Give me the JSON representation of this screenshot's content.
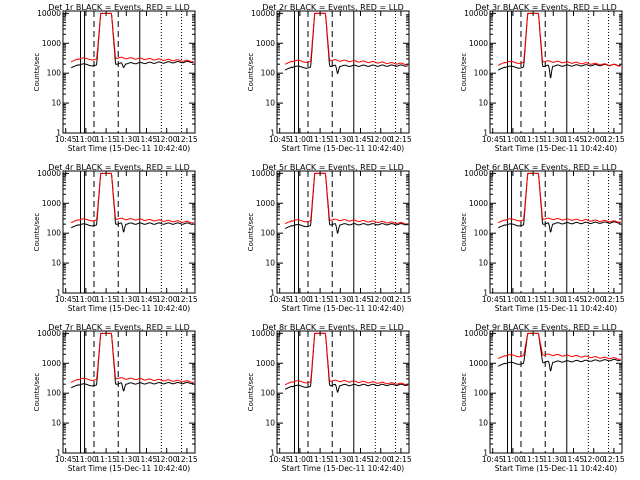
{
  "figure": {
    "xlabel": "Start Time (15-Dec-11 10:42:40)",
    "ylabel": "Counts/sec",
    "x_tick_labels": [
      "10:45",
      "11:00",
      "11:15",
      "11:30",
      "11:45",
      "12:00",
      "12:15"
    ],
    "y_tick_labels": [
      "1",
      "10",
      "100",
      "1000",
      "10000"
    ],
    "legend_text": "BLACK = Events, RED = LLD",
    "colors": {
      "events": "#000000",
      "lld": "#ff0000",
      "axes": "#000000"
    }
  },
  "chart_data": [
    {
      "type": "line",
      "title": "Det 1r BLACK = Events, RED = LLD",
      "xlabel": "Start Time (15-Dec-11 10:42:40)",
      "ylabel": "Counts/sec",
      "yscale": "log",
      "ylim": [
        1,
        12000
      ],
      "xlim": [
        "10:45",
        "12:20"
      ],
      "peak": 10000,
      "series": [
        {
          "name": "BLACK = Events",
          "base": 190,
          "peak": 10000,
          "dip": 150,
          "end": 240
        },
        {
          "name": "RED = LLD",
          "base": 300,
          "peak": 10000,
          "dip": 300,
          "end": 250
        }
      ]
    },
    {
      "type": "line",
      "title": "Det 2r BLACK = Events, RED = LLD",
      "xlabel": "Start Time (15-Dec-11 10:42:40)",
      "ylabel": "Counts/sec",
      "yscale": "log",
      "ylim": [
        1,
        12000
      ],
      "xlim": [
        "10:45",
        "12:20"
      ],
      "peak": 10000,
      "series": [
        {
          "name": "BLACK = Events",
          "base": 160,
          "peak": 10000,
          "dip": 90,
          "end": 180
        },
        {
          "name": "RED = LLD",
          "base": 250,
          "peak": 10000,
          "dip": 250,
          "end": 200
        }
      ]
    },
    {
      "type": "line",
      "title": "Det 3r BLACK = Events, RED = LLD",
      "xlabel": "Start Time (15-Dec-11 10:42:40)",
      "ylabel": "Counts/sec",
      "yscale": "log",
      "ylim": [
        1,
        12000
      ],
      "xlim": [
        "10:45",
        "12:20"
      ],
      "peak": 10000,
      "series": [
        {
          "name": "BLACK = Events",
          "base": 160,
          "peak": 10000,
          "dip": 60,
          "end": 190
        },
        {
          "name": "RED = LLD",
          "base": 230,
          "peak": 10000,
          "dip": 230,
          "end": 180
        }
      ]
    },
    {
      "type": "line",
      "title": "Det 4r BLACK = Events, RED = LLD",
      "xlabel": "Start Time (15-Dec-11 10:42:40)",
      "ylabel": "Counts/sec",
      "yscale": "log",
      "ylim": [
        1,
        12000
      ],
      "xlim": [
        "10:45",
        "12:20"
      ],
      "peak": 10000,
      "series": [
        {
          "name": "BLACK = Events",
          "base": 190,
          "peak": 10000,
          "dip": 100,
          "end": 210
        },
        {
          "name": "RED = LLD",
          "base": 280,
          "peak": 10000,
          "dip": 280,
          "end": 230
        }
      ]
    },
    {
      "type": "line",
      "title": "Det 5r BLACK = Events, RED = LLD",
      "xlabel": "Start Time (15-Dec-11 10:42:40)",
      "ylabel": "Counts/sec",
      "yscale": "log",
      "ylim": [
        1,
        12000
      ],
      "xlim": [
        "10:45",
        "12:20"
      ],
      "peak": 10000,
      "series": [
        {
          "name": "BLACK = Events",
          "base": 180,
          "peak": 10000,
          "dip": 90,
          "end": 200
        },
        {
          "name": "RED = LLD",
          "base": 260,
          "peak": 10000,
          "dip": 260,
          "end": 210
        }
      ]
    },
    {
      "type": "line",
      "title": "Det 6r BLACK = Events, RED = LLD",
      "xlabel": "Start Time (15-Dec-11 10:42:40)",
      "ylabel": "Counts/sec",
      "yscale": "log",
      "ylim": [
        1,
        12000
      ],
      "xlim": [
        "10:45",
        "12:20"
      ],
      "peak": 10000,
      "series": [
        {
          "name": "BLACK = Events",
          "base": 190,
          "peak": 10000,
          "dip": 100,
          "end": 230
        },
        {
          "name": "RED = LLD",
          "base": 280,
          "peak": 10000,
          "dip": 280,
          "end": 240
        }
      ]
    },
    {
      "type": "line",
      "title": "Det 7r BLACK = Events, RED = LLD",
      "xlabel": "Start Time (15-Dec-11 10:42:40)",
      "ylabel": "Counts/sec",
      "yscale": "log",
      "ylim": [
        1,
        12000
      ],
      "xlim": [
        "10:45",
        "12:20"
      ],
      "peak": 10000,
      "series": [
        {
          "name": "BLACK = Events",
          "base": 190,
          "peak": 10000,
          "dip": 110,
          "end": 220
        },
        {
          "name": "RED = LLD",
          "base": 290,
          "peak": 10000,
          "dip": 290,
          "end": 240
        }
      ]
    },
    {
      "type": "line",
      "title": "Det 8r BLACK = Events, RED = LLD",
      "xlabel": "Start Time (15-Dec-11 10:42:40)",
      "ylabel": "Counts/sec",
      "yscale": "log",
      "ylim": [
        1,
        12000
      ],
      "xlim": [
        "10:45",
        "12:20"
      ],
      "peak": 10000,
      "series": [
        {
          "name": "BLACK = Events",
          "base": 170,
          "peak": 10000,
          "dip": 100,
          "end": 190
        },
        {
          "name": "RED = LLD",
          "base": 240,
          "peak": 10000,
          "dip": 240,
          "end": 200
        }
      ]
    },
    {
      "type": "line",
      "title": "Det 9r BLACK = Events, RED = LLD",
      "xlabel": "Start Time (15-Dec-11 10:42:40)",
      "ylabel": "Counts/sec",
      "yscale": "log",
      "ylim": [
        1,
        12000
      ],
      "xlim": [
        "10:45",
        "12:20"
      ],
      "peak": 10000,
      "series": [
        {
          "name": "BLACK = Events",
          "base": 1000,
          "peak": 10000,
          "dip": 500,
          "end": 1300
        },
        {
          "name": "RED = LLD",
          "base": 1800,
          "peak": 10000,
          "dip": 1800,
          "end": 1400
        }
      ]
    }
  ]
}
